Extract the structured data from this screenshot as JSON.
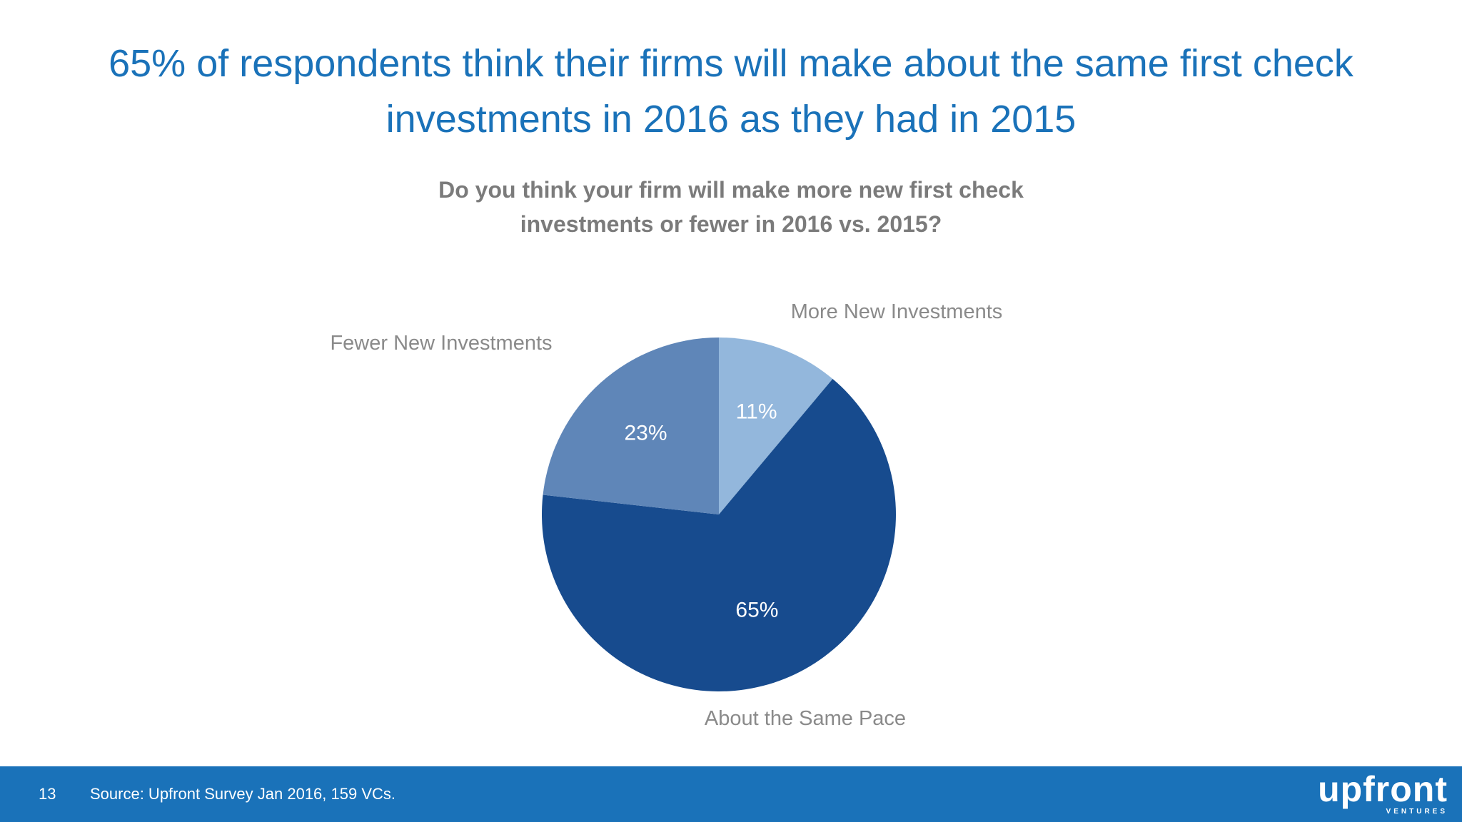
{
  "slide": {
    "title": "65% of respondents think their firms will make about the same first check investments in 2016 as they had in 2015",
    "page_number": "13",
    "source": "Source: Upfront Survey Jan 2016, 159 VCs.",
    "logo": {
      "wordmark": "upfront",
      "sub": "VENTURES"
    }
  },
  "colors": {
    "title": "#1a72b9",
    "footer": "#1a72b9",
    "question": "#7b7b7b",
    "label": "#8a8a8a"
  },
  "chart_data": {
    "type": "pie",
    "title": "Do you think your firm will make more new first check investments or fewer in 2016 vs. 2015?",
    "labels": [
      "More New Investments",
      "About the Same Pace",
      "Fewer New Investments"
    ],
    "values": [
      11,
      65,
      23
    ],
    "value_labels": [
      "11%",
      "65%",
      "23%"
    ],
    "colors": [
      "#93b7dc",
      "#174b8e",
      "#5f86b8"
    ],
    "start_angle": "12 o'clock",
    "direction": "clockwise",
    "legend": "none"
  }
}
